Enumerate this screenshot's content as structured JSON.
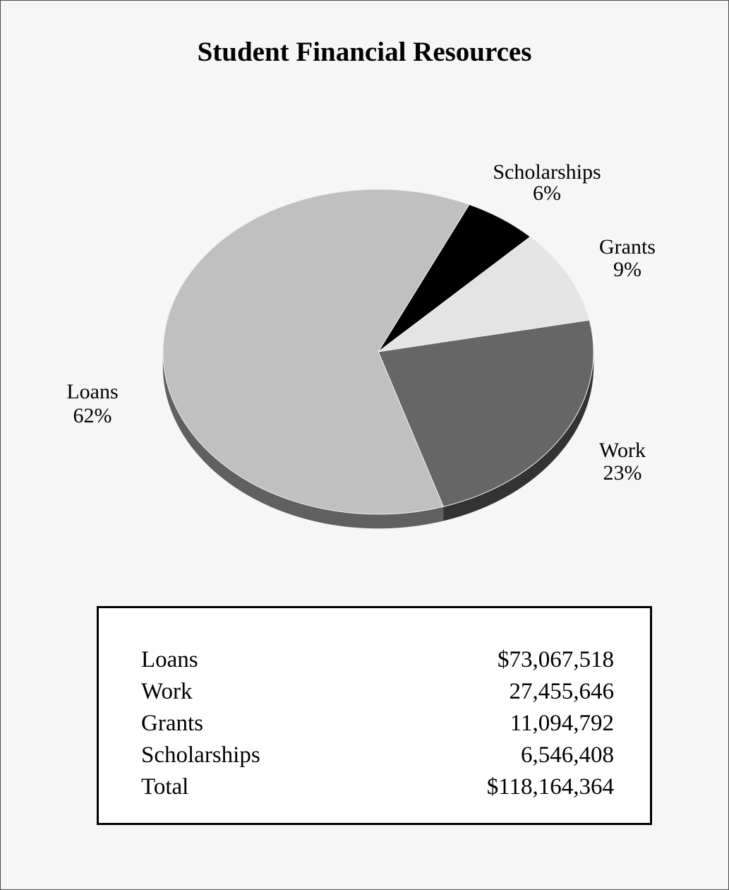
{
  "chart_data": {
    "type": "pie",
    "title": "Student Financial Resources",
    "slices": [
      {
        "label": "Scholarships",
        "percent_label": "6%",
        "value": 6546408,
        "color": "#000000"
      },
      {
        "label": "Grants",
        "percent_label": "9%",
        "value": 11094792,
        "color": "#e4e4e4"
      },
      {
        "label": "Work",
        "percent_label": "23%",
        "value": 27455646,
        "color": "#666666"
      },
      {
        "label": "Loans",
        "percent_label": "62%",
        "value": 73067518,
        "color": "#c0c0c0"
      }
    ],
    "table": [
      {
        "label": "Loans",
        "amount": "$73,067,518"
      },
      {
        "label": "Work",
        "amount": "27,455,646"
      },
      {
        "label": "Grants",
        "amount": "11,094,792"
      },
      {
        "label": "Scholarships",
        "amount": "6,546,408"
      },
      {
        "label": "Total",
        "amount": "$118,164,364"
      }
    ]
  }
}
